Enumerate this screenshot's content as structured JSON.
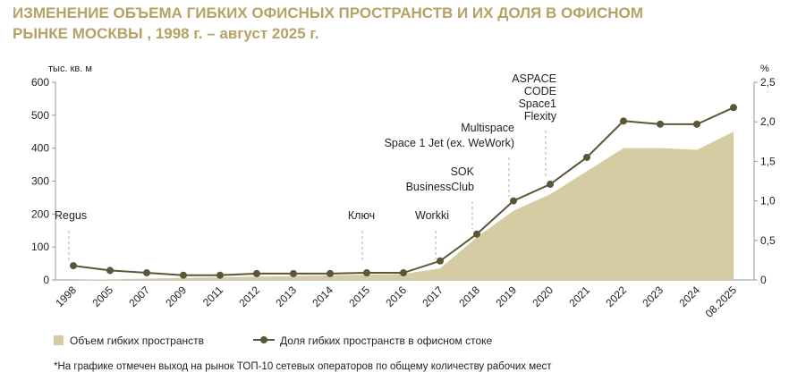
{
  "chart_data": {
    "type": "area-line",
    "title": [
      "ИЗМЕНЕНИЕ ОБЪЕМА ГИБКИХ ОФИСНЫХ ПРОСТРАНСТВ И ИХ ДОЛЯ В ОФИСНОМ",
      "РЫНКЕ МОСКВЫ , 1998 г. – август 2025 г."
    ],
    "y_label": "тыс. кв. м",
    "y2_label": "%",
    "categories": [
      "1998",
      "2005",
      "2007",
      "2009",
      "2011",
      "2012",
      "2013",
      "2014",
      "2015",
      "2016",
      "2017",
      "2018",
      "2019",
      "2020",
      "2021",
      "2022",
      "2023",
      "2024",
      "08.2025"
    ],
    "series": [
      {
        "name": "Объем гибких пространств",
        "type": "area",
        "color": "#d6cca3",
        "values": [
          0,
          2,
          4,
          6,
          8,
          10,
          12,
          14,
          16,
          18,
          35,
          130,
          210,
          260,
          330,
          400,
          400,
          395,
          450
        ]
      },
      {
        "name": "Доля гибких пространств в офисном стоке",
        "type": "line",
        "axis": "y2",
        "color": "#5b5638",
        "values": [
          0.18,
          0.12,
          0.09,
          0.06,
          0.06,
          0.08,
          0.08,
          0.08,
          0.09,
          0.09,
          0.24,
          0.58,
          1.0,
          1.21,
          1.55,
          2.01,
          1.97,
          1.97,
          2.18
        ]
      }
    ],
    "ylim": [
      0,
      600
    ],
    "yticks": [
      0,
      100,
      200,
      300,
      400,
      500,
      600
    ],
    "y2lim": [
      0,
      2.5
    ],
    "y2ticks": [
      0,
      {
        "value": 0.5,
        "label": "0,5"
      },
      {
        "value": 1.0,
        "label": "1,0"
      },
      {
        "value": 1.5,
        "label": "1,5"
      },
      {
        "value": 2.0,
        "label": "2,0"
      },
      {
        "value": 2.5,
        "label": "2,5"
      }
    ],
    "annotations": [
      {
        "at": "1998",
        "lines": [
          "Regus"
        ]
      },
      {
        "at": "2015",
        "lines": [
          "Ключ"
        ]
      },
      {
        "at": "2017",
        "lines": [
          "Workki"
        ]
      },
      {
        "at": "2018",
        "lines": [
          "SOK",
          "BusinessClub"
        ]
      },
      {
        "at": "2019",
        "lines": [
          "Multispace",
          "Space 1 Jet (ex. WeWork)"
        ]
      },
      {
        "at": "2020",
        "lines": [
          "ASPACE",
          "CODE",
          "Space1",
          "Flexity"
        ]
      }
    ],
    "footnote": "*На графике отмечен выход на рынок ТОП-10 сетевых операторов по общему количеству рабочих мест"
  }
}
